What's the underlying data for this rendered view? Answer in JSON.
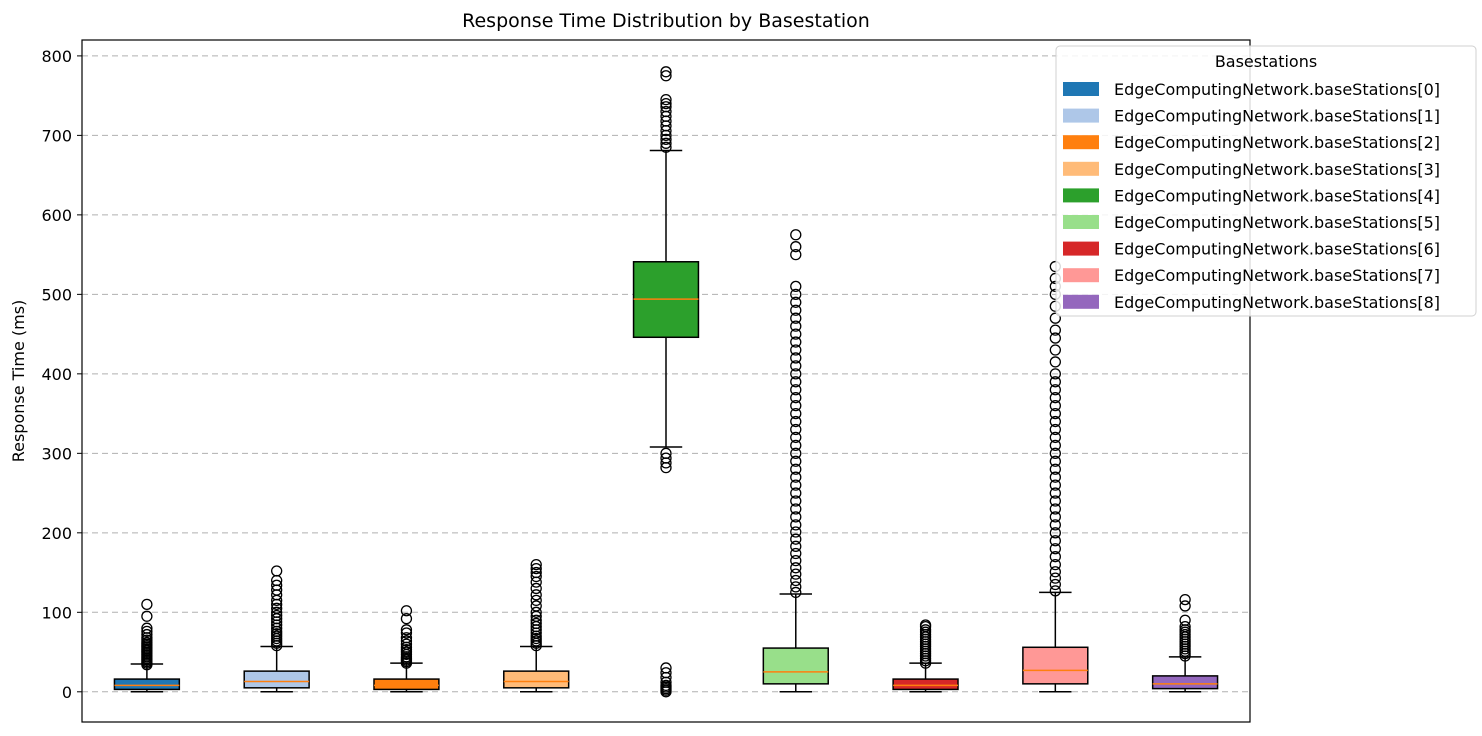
{
  "chart_data": {
    "type": "box",
    "title": "Response Time Distribution by Basestation",
    "xlabel": "",
    "ylabel": "Response Time (ms)",
    "ylim": [
      -38,
      820
    ],
    "yticks": [
      0,
      100,
      200,
      300,
      400,
      500,
      600,
      700,
      800
    ],
    "grid": "y-dashed",
    "legend": {
      "title": "Basestations",
      "placement": "top-right"
    },
    "series": [
      {
        "name": "EdgeComputingNetwork.baseStations[0]",
        "color": "#1f77b4",
        "whisker_low": 0,
        "q1": 3,
        "median": 8,
        "q3": 16,
        "whisker_high": 35,
        "outliers": [
          34,
          36,
          38,
          40,
          42,
          44,
          46,
          48,
          50,
          52,
          54,
          56,
          58,
          60,
          62,
          65,
          68,
          72,
          76,
          80,
          95,
          110
        ]
      },
      {
        "name": "EdgeComputingNetwork.baseStations[1]",
        "color": "#aec7e8",
        "whisker_low": 0,
        "q1": 5,
        "median": 13,
        "q3": 26,
        "whisker_high": 57,
        "outliers": [
          58,
          61,
          64,
          67,
          70,
          73,
          76,
          80,
          84,
          88,
          92,
          96,
          100,
          105,
          110,
          115,
          122,
          128,
          134,
          140,
          152
        ]
      },
      {
        "name": "EdgeComputingNetwork.baseStations[2]",
        "color": "#ff7f0e",
        "whisker_low": 0,
        "q1": 3,
        "median": 8,
        "q3": 16,
        "whisker_high": 36,
        "outliers": [
          36,
          38,
          40,
          42,
          44,
          47,
          50,
          53,
          56,
          60,
          64,
          68,
          74,
          78,
          92,
          102
        ]
      },
      {
        "name": "EdgeComputingNetwork.baseStations[3]",
        "color": "#ffbb78",
        "whisker_low": 0,
        "q1": 5,
        "median": 13,
        "q3": 26,
        "whisker_high": 57,
        "outliers": [
          58,
          61,
          64,
          67,
          70,
          74,
          78,
          82,
          86,
          90,
          95,
          100,
          108,
          115,
          122,
          130,
          138,
          145,
          150,
          155,
          160
        ]
      },
      {
        "name": "EdgeComputingNetwork.baseStations[4]",
        "color": "#2ca02c",
        "whisker_low": 308,
        "q1": 446,
        "median": 494,
        "q3": 541,
        "whisker_high": 681,
        "outliers": [
          0,
          2,
          4,
          6,
          8,
          12,
          18,
          24,
          30,
          282,
          288,
          294,
          300,
          685,
          690,
          695,
          700,
          706,
          712,
          718,
          724,
          730,
          736,
          740,
          745,
          775,
          780
        ]
      },
      {
        "name": "EdgeComputingNetwork.baseStations[5]",
        "color": "#98df8a",
        "whisker_low": 0,
        "q1": 10,
        "median": 25,
        "q3": 55,
        "whisker_high": 123,
        "outliers": [
          125,
          132,
          140,
          148,
          156,
          165,
          174,
          183,
          192,
          201,
          210,
          220,
          230,
          240,
          250,
          260,
          270,
          280,
          290,
          300,
          310,
          320,
          330,
          340,
          350,
          360,
          370,
          380,
          390,
          400,
          410,
          420,
          430,
          440,
          450,
          460,
          470,
          480,
          490,
          500,
          510,
          550,
          560,
          575
        ]
      },
      {
        "name": "EdgeComputingNetwork.baseStations[6]",
        "color": "#d62728",
        "whisker_low": 0,
        "q1": 3,
        "median": 8,
        "q3": 16,
        "whisker_high": 36,
        "outliers": [
          36,
          39,
          42,
          45,
          48,
          51,
          54,
          57,
          60,
          63,
          66,
          69,
          72,
          75,
          78,
          82,
          84
        ]
      },
      {
        "name": "EdgeComputingNetwork.baseStations[7]",
        "color": "#ff9896",
        "whisker_low": 0,
        "q1": 10,
        "median": 27,
        "q3": 56,
        "whisker_high": 125,
        "outliers": [
          127,
          135,
          143,
          151,
          160,
          170,
          180,
          190,
          200,
          210,
          220,
          230,
          240,
          250,
          260,
          270,
          280,
          290,
          300,
          310,
          320,
          330,
          340,
          350,
          360,
          370,
          380,
          390,
          400,
          415,
          430,
          445,
          455,
          470,
          485,
          500,
          510,
          520,
          535
        ]
      },
      {
        "name": "EdgeComputingNetwork.baseStations[8]",
        "color": "#9467bd",
        "whisker_low": 0,
        "q1": 4,
        "median": 10,
        "q3": 20,
        "whisker_high": 44,
        "outliers": [
          45,
          48,
          51,
          54,
          57,
          60,
          63,
          66,
          69,
          72,
          75,
          78,
          82,
          90,
          108,
          116
        ]
      }
    ]
  }
}
